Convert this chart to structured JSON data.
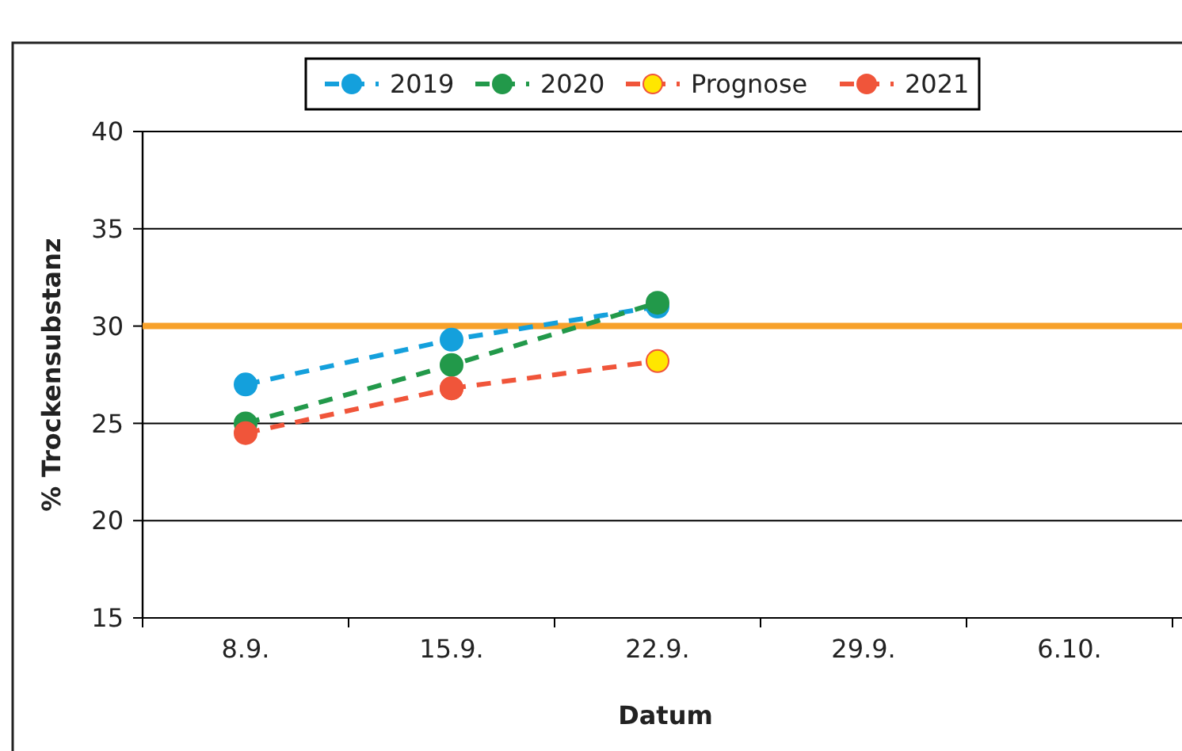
{
  "chart_data": {
    "type": "line",
    "categories": [
      "8.9.",
      "15.9.",
      "22.9.",
      "29.9.",
      "6.10."
    ],
    "series": [
      {
        "name": "2019",
        "color": "#14a0dc",
        "values": [
          27.0,
          29.3,
          31.0,
          null,
          null
        ]
      },
      {
        "name": "2020",
        "color": "#22994a",
        "values": [
          25.0,
          28.0,
          31.2,
          null,
          null
        ]
      },
      {
        "name": "Prognose",
        "color": "#ffe600",
        "values": [
          null,
          26.8,
          28.2,
          null,
          null
        ]
      },
      {
        "name": "2021",
        "color": "#f0553a",
        "values": [
          24.5,
          26.8,
          null,
          null,
          null
        ]
      }
    ],
    "ylim": [
      15,
      40
    ],
    "yticks": [
      15,
      20,
      25,
      30,
      35,
      40
    ],
    "grid": "y",
    "legend": "top",
    "marker": "circle",
    "line_style": "dashed",
    "xlabel": "Datum",
    "ylabel": "% Trockensubstanz",
    "ref_lines": [
      {
        "axis": "y",
        "value": 30,
        "color": "#f7a12a"
      }
    ]
  }
}
